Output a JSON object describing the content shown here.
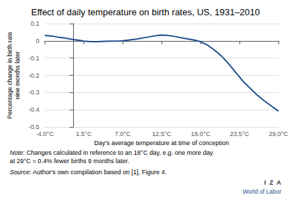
{
  "chart_data": {
    "type": "line",
    "title": "Effect of daily temperature on birth rates, US, 1931–2010",
    "xlabel": "Day's average temperature at time of conception",
    "ylabel": "Percentage change in birth rate\nnine months later",
    "x": [
      -4.0,
      -3.0,
      -2.0,
      -1.0,
      0.0,
      1.0,
      1.5,
      2.5,
      3.5,
      4.5,
      5.5,
      6.5,
      7.0,
      8.0,
      9.0,
      10.0,
      11.0,
      12.0,
      12.5,
      13.0,
      14.0,
      15.0,
      16.0,
      17.0,
      18.0,
      19.0,
      20.0,
      21.0,
      22.0,
      23.0,
      23.5,
      24.0,
      25.0,
      26.0,
      27.0,
      28.0,
      29.0
    ],
    "values": [
      0.032,
      0.028,
      0.02,
      0.015,
      0.007,
      0.002,
      -0.002,
      -0.005,
      -0.005,
      -0.003,
      -0.002,
      -0.001,
      0.0,
      0.005,
      0.01,
      0.018,
      0.025,
      0.032,
      0.034,
      0.033,
      0.028,
      0.02,
      0.012,
      0.005,
      -0.005,
      -0.025,
      -0.055,
      -0.09,
      -0.135,
      -0.185,
      -0.21,
      -0.235,
      -0.275,
      -0.315,
      -0.348,
      -0.378,
      -0.408
    ],
    "color": "#1F4E8C",
    "xlim": [
      -4.0,
      29.0
    ],
    "ylim": [
      -0.5,
      0.1
    ],
    "xticks": [
      {
        "value": -4.0,
        "label": "-4.0°C"
      },
      {
        "value": 1.5,
        "label": "1.5°C"
      },
      {
        "value": 7.0,
        "label": "7.0°C"
      },
      {
        "value": 12.5,
        "label": "12.5°C"
      },
      {
        "value": 18.0,
        "label": "18.0°C"
      },
      {
        "value": 23.5,
        "label": "23.5°C"
      },
      {
        "value": 29.0,
        "label": "29.0°C"
      }
    ],
    "yticks": [
      0.1,
      0,
      -0.1,
      -0.2,
      -0.3,
      -0.4,
      -0.5
    ],
    "grid": true,
    "annotations": [
      {
        "parts": [
          {
            "text": "Note",
            "style": "italic"
          },
          {
            "text": ": Changes calculated in reference to an 18°C day, e.g. one more day\nat 29°C = 0.4% fewer births 9 months later."
          }
        ]
      },
      {
        "parts": [
          {
            "text": "Source",
            "style": "italic"
          },
          {
            "text": ": Author's own compilation based on [1], Figure 4."
          }
        ]
      },
      {
        "text": "I  Z  A",
        "color": "#333333",
        "weight": "bold"
      },
      {
        "text": "World of Labor",
        "color": "#1F4E8C"
      }
    ]
  }
}
